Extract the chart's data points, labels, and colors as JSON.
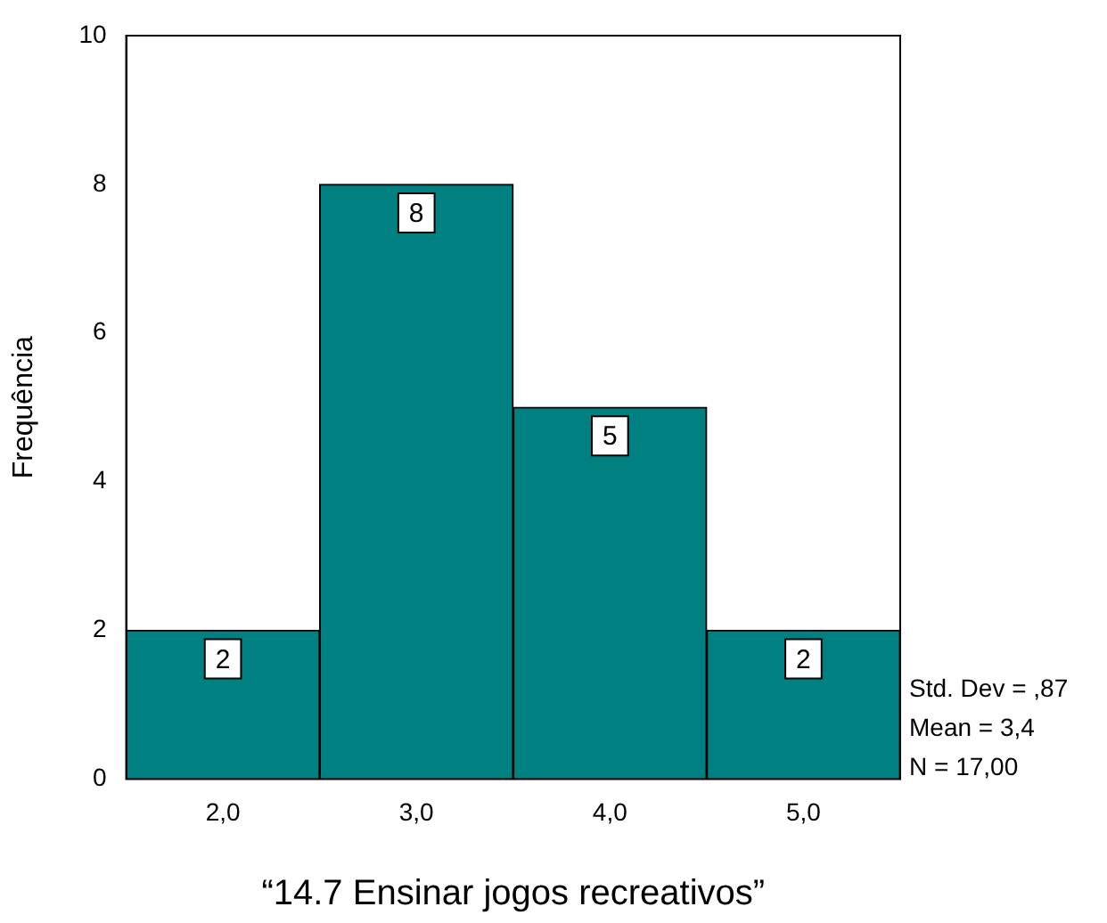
{
  "chart_data": {
    "type": "histogram",
    "xlabel": "“14.7 Ensinar jogos recreativos”",
    "ylabel": "Frequência",
    "bins": [
      1.5,
      2.5,
      3.5,
      4.5,
      5.5
    ],
    "values": [
      2,
      8,
      5,
      2
    ],
    "color": "#008080",
    "xlim": [
      1.5,
      5.5
    ],
    "xticks": [
      {
        "value": 2,
        "label": "2,0"
      },
      {
        "value": 3,
        "label": "3,0"
      },
      {
        "value": 4,
        "label": "4,0"
      },
      {
        "value": 5,
        "label": "5,0"
      }
    ],
    "ylim": [
      0,
      10
    ],
    "yticks": [
      0,
      2,
      4,
      6,
      8,
      10
    ],
    "grid": false,
    "legend": false,
    "data_labels": true,
    "annotations": [
      "Std. Dev = ,87",
      "Mean = 3,4",
      "N = 17,00"
    ]
  }
}
